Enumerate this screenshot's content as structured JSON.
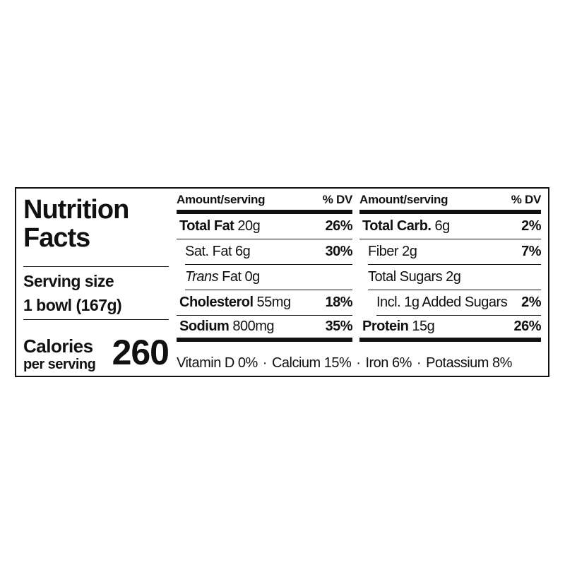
{
  "title": "Nutrition Facts",
  "serving": {
    "label": "Serving size",
    "value": "1 bowl (167g)"
  },
  "calories": {
    "label": "Calories",
    "sublabel": "per serving",
    "value": "260"
  },
  "columns": [
    {
      "amount_header": "Amount/serving",
      "dv_header": "% DV",
      "rows": [
        {
          "name": "Total Fat",
          "amount": "20g",
          "dv": "26%",
          "sub": [
            {
              "name": "Sat. Fat",
              "amount": "6g",
              "dv": "30%"
            },
            {
              "name_italic": "Trans",
              "name": "Fat",
              "amount": "0g"
            }
          ]
        },
        {
          "name": "Cholesterol",
          "amount": "55mg",
          "dv": "18%"
        },
        {
          "name": "Sodium",
          "amount": "800mg",
          "dv": "35%"
        }
      ]
    },
    {
      "amount_header": "Amount/serving",
      "dv_header": "% DV",
      "rows": [
        {
          "name": "Total Carb.",
          "amount": "6g",
          "dv": "2%",
          "sub": [
            {
              "name": "Fiber",
              "amount": "2g",
              "dv": "7%"
            },
            {
              "name": "Total Sugars",
              "amount": "2g",
              "sub": [
                {
                  "name": "Incl. 1g Added Sugars",
                  "dv": "2%"
                }
              ]
            }
          ]
        },
        {
          "name": "Protein",
          "amount": "15g",
          "dv": "26%"
        }
      ]
    }
  ],
  "vitamins": [
    "Vitamin D 0%",
    "Calcium 15%",
    "Iron 6%",
    "Potassium 8%"
  ],
  "separator": "·"
}
